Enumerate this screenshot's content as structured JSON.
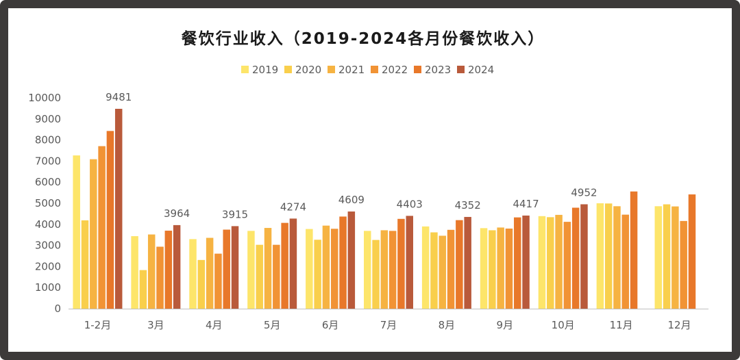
{
  "chart_data": {
    "type": "bar",
    "title": "餐饮行业收入（2019-2024各月份餐饮收入）",
    "xlabel": "",
    "ylabel": "",
    "ylim": [
      0,
      10000
    ],
    "yticks": [
      0,
      1000,
      2000,
      3000,
      4000,
      5000,
      6000,
      7000,
      8000,
      9000,
      10000
    ],
    "categories": [
      "1-2月",
      "3月",
      "4月",
      "5月",
      "6月",
      "7月",
      "8月",
      "9月",
      "10月",
      "11月",
      "12月"
    ],
    "legend_position": "top",
    "grid": false,
    "series": [
      {
        "name": "2019",
        "color": "#fde56a",
        "values": [
          7270,
          3440,
          3300,
          3690,
          3780,
          3690,
          3900,
          3820,
          4390,
          5000,
          4860
        ]
      },
      {
        "name": "2020",
        "color": "#f9cf4c",
        "values": [
          4190,
          1830,
          2310,
          3030,
          3270,
          3260,
          3620,
          3720,
          4340,
          4990,
          4950
        ]
      },
      {
        "name": "2021",
        "color": "#f6b342",
        "values": [
          7090,
          3520,
          3360,
          3830,
          3940,
          3720,
          3460,
          3850,
          4450,
          4860,
          4850
        ]
      },
      {
        "name": "2022",
        "color": "#f19335",
        "values": [
          7710,
          2940,
          2610,
          3030,
          3790,
          3690,
          3740,
          3800,
          4120,
          4460,
          4160
        ]
      },
      {
        "name": "2023",
        "color": "#e8782a",
        "values": [
          8430,
          3700,
          3750,
          4070,
          4370,
          4260,
          4200,
          4330,
          4790,
          5560,
          5420
        ]
      },
      {
        "name": "2024",
        "color": "#b95a3b",
        "values": [
          9481,
          3964,
          3915,
          4274,
          4609,
          4403,
          4352,
          4417,
          4952,
          null,
          null
        ]
      }
    ],
    "data_labels_series": "2024"
  }
}
